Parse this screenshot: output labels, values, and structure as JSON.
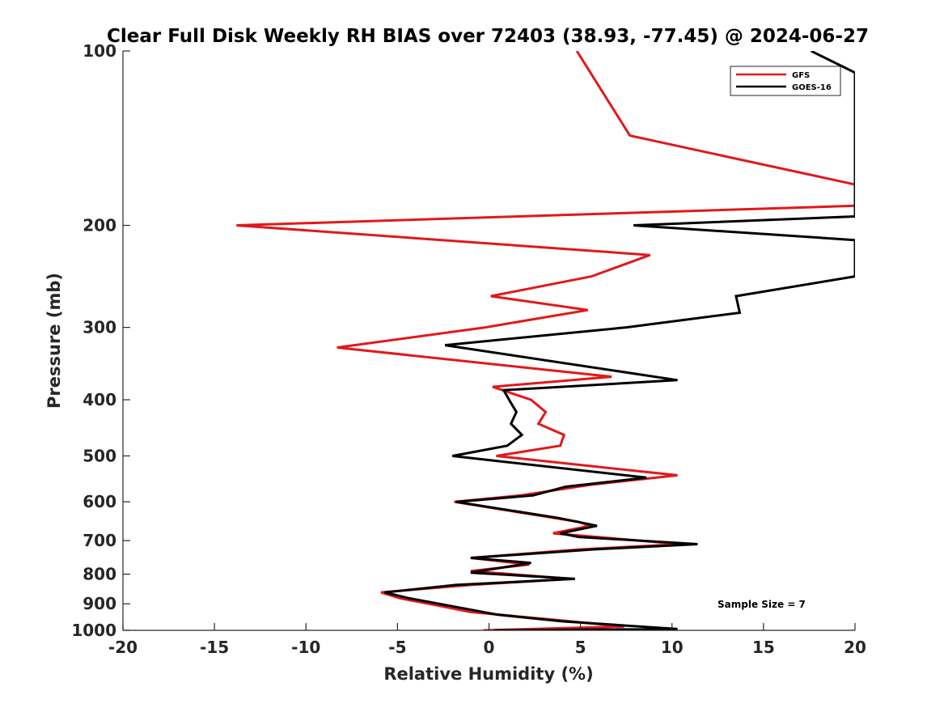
{
  "chart_data": {
    "type": "line",
    "title": "Clear Full Disk Weekly RH BIAS over 72403 (38.93, -77.45) @ 2024-06-27",
    "xlabel": "Relative Humidity (%)",
    "ylabel": "Pressure (mb)",
    "xlim": [
      -20,
      20
    ],
    "ylim": [
      100,
      1000
    ],
    "y_scale": "log",
    "y_reversed": true,
    "grid": false,
    "legend_position": "top-right",
    "x_ticks": [
      -20,
      -15,
      -10,
      -5,
      0,
      5,
      10,
      15,
      20
    ],
    "x_tick_labels": [
      "-20",
      "-15",
      "-10",
      "-5",
      "0",
      "5",
      "10",
      "15",
      "20"
    ],
    "y_ticks": [
      100,
      200,
      300,
      400,
      500,
      600,
      700,
      800,
      900,
      1000
    ],
    "y_tick_labels": [
      "100",
      "200",
      "300",
      "400",
      "500",
      "600",
      "700",
      "800",
      "900",
      "1000"
    ],
    "annotation": "Sample Size = 7",
    "series": [
      {
        "name": "GFS",
        "color": "#e0191b",
        "points": [
          [
            4.8,
            100
          ],
          [
            7.7,
            140
          ],
          [
            20.0,
            170
          ],
          [
            20.0,
            185
          ],
          [
            -13.8,
            200
          ],
          [
            8.8,
            225
          ],
          [
            5.6,
            245
          ],
          [
            0.1,
            265
          ],
          [
            5.4,
            280
          ],
          [
            -0.2,
            300
          ],
          [
            -8.3,
            325
          ],
          [
            6.7,
            365
          ],
          [
            0.2,
            380
          ],
          [
            2.3,
            400
          ],
          [
            3.1,
            420
          ],
          [
            2.7,
            440
          ],
          [
            4.1,
            460
          ],
          [
            3.9,
            480
          ],
          [
            0.4,
            500
          ],
          [
            10.3,
            540
          ],
          [
            5.7,
            560
          ],
          [
            1.7,
            585
          ],
          [
            -1.9,
            600
          ],
          [
            4.9,
            650
          ],
          [
            5.5,
            660
          ],
          [
            3.5,
            680
          ],
          [
            10.5,
            710
          ],
          [
            5.0,
            725
          ],
          [
            -1.0,
            750
          ],
          [
            2.2,
            770
          ],
          [
            -1.0,
            790
          ],
          [
            4.5,
            815
          ],
          [
            -1.0,
            835
          ],
          [
            -5.9,
            860
          ],
          [
            -4.9,
            880
          ],
          [
            -2.5,
            910
          ],
          [
            -1.0,
            930
          ],
          [
            3.7,
            960
          ],
          [
            7.4,
            985
          ],
          [
            -0.3,
            1000
          ]
        ]
      },
      {
        "name": "GOES-16",
        "color": "#000000",
        "points": [
          [
            17.6,
            100
          ],
          [
            20.0,
            109
          ],
          [
            20.0,
            193
          ],
          [
            7.9,
            200
          ],
          [
            20.0,
            212
          ],
          [
            20.0,
            245
          ],
          [
            13.5,
            265
          ],
          [
            13.7,
            283
          ],
          [
            7.5,
            300
          ],
          [
            -2.4,
            322
          ],
          [
            10.3,
            370
          ],
          [
            0.8,
            385
          ],
          [
            1.1,
            400
          ],
          [
            1.5,
            420
          ],
          [
            1.2,
            440
          ],
          [
            1.8,
            460
          ],
          [
            1.0,
            480
          ],
          [
            -2.0,
            500
          ],
          [
            8.6,
            545
          ],
          [
            4.2,
            565
          ],
          [
            2.4,
            585
          ],
          [
            -1.8,
            600
          ],
          [
            3.8,
            640
          ],
          [
            5.9,
            660
          ],
          [
            3.9,
            680
          ],
          [
            4.9,
            690
          ],
          [
            11.4,
            710
          ],
          [
            5.7,
            725
          ],
          [
            -1.0,
            750
          ],
          [
            2.3,
            765
          ],
          [
            -1.0,
            795
          ],
          [
            4.7,
            815
          ],
          [
            -1.8,
            835
          ],
          [
            -5.7,
            860
          ],
          [
            -4.4,
            880
          ],
          [
            -1.9,
            910
          ],
          [
            0.5,
            940
          ],
          [
            4.0,
            965
          ],
          [
            10.3,
            995
          ],
          [
            0.3,
            1000
          ]
        ]
      }
    ]
  }
}
